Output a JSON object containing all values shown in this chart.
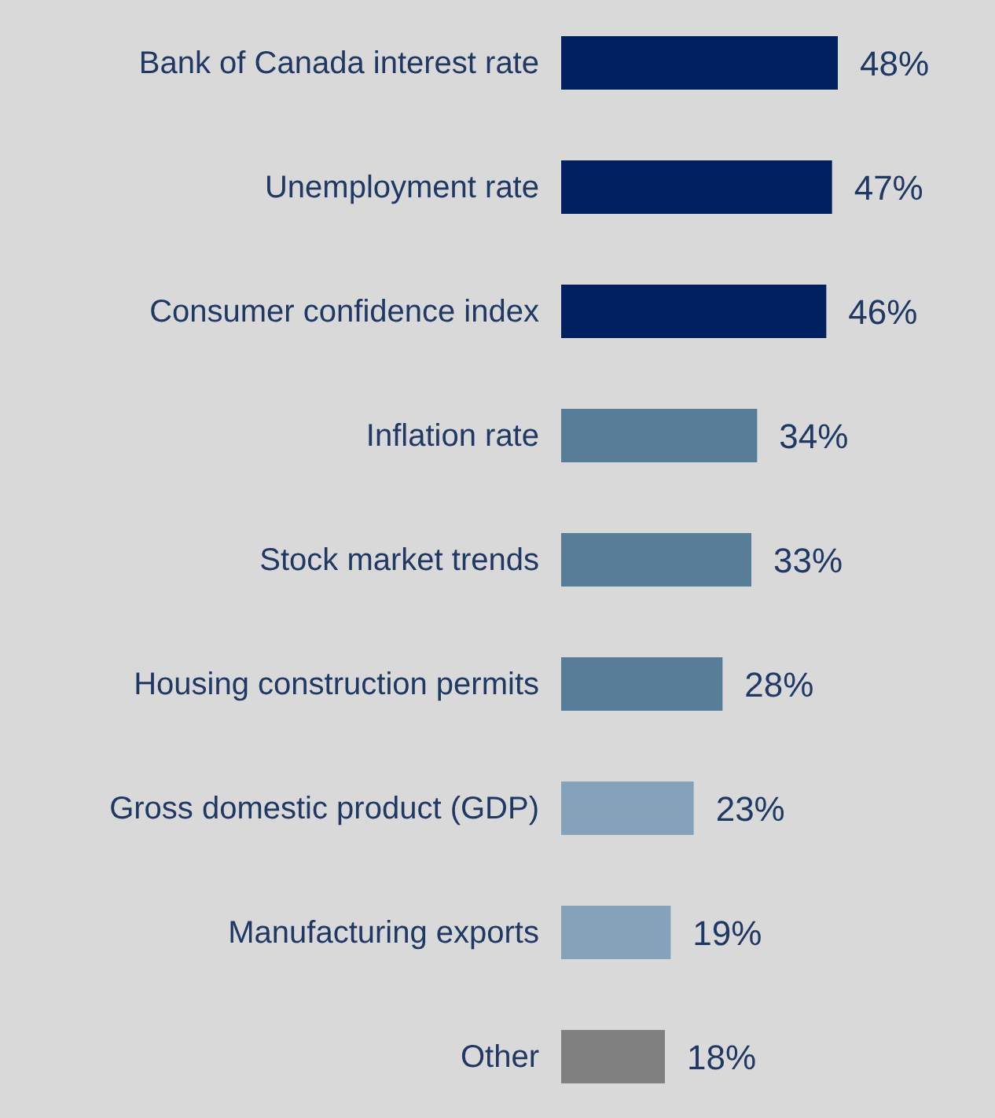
{
  "chart_data": {
    "type": "bar",
    "orientation": "horizontal",
    "value_labels": [
      "48%",
      "47%",
      "46%",
      "34%",
      "33%",
      "28%",
      "23%",
      "19%",
      "18%"
    ],
    "categories": [
      "Bank of Canada interest rate",
      "Unemployment rate",
      "Consumer confidence index",
      "Inflation rate",
      "Stock market trends",
      "Housing construction permits",
      "Gross domestic product (GDP)",
      "Manufacturing exports",
      "Other"
    ],
    "values": [
      48,
      47,
      46,
      34,
      33,
      28,
      23,
      19,
      18
    ],
    "colors": [
      "#002060",
      "#002060",
      "#002060",
      "#587d99",
      "#587d99",
      "#587d99",
      "#84a3ba",
      "#84a3ba",
      "#808080"
    ],
    "grid": false,
    "legend": false
  }
}
